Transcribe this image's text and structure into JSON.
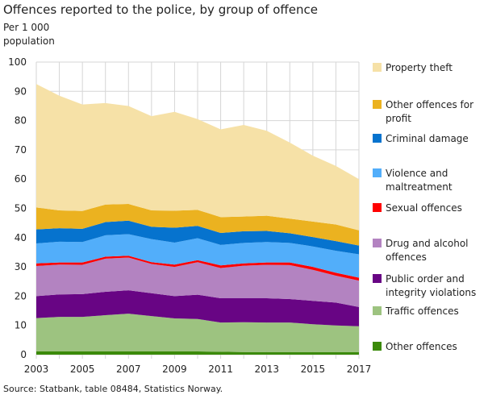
{
  "chart_data": {
    "type": "area",
    "stacked": true,
    "title": "Offences reported to the police, by group of offence",
    "ylabel": "Per 1 000 population",
    "source": "Source: Statbank, table 08484, Statistics Norway.",
    "ylim": [
      0,
      100
    ],
    "yticks": [
      0,
      10,
      20,
      30,
      40,
      50,
      60,
      70,
      80,
      90,
      100
    ],
    "x": [
      2003,
      2004,
      2005,
      2006,
      2007,
      2008,
      2009,
      2010,
      2011,
      2012,
      2013,
      2014,
      2015,
      2016,
      2017
    ],
    "xticks": [
      2003,
      2005,
      2007,
      2009,
      2011,
      2013,
      2015,
      2017
    ],
    "grid": true,
    "legend": "right",
    "series": [
      {
        "name": "Other offences",
        "color": "#3b8a0a",
        "values": [
          1.1,
          1.1,
          1.1,
          1.1,
          1.1,
          1.1,
          1.1,
          1.1,
          1.0,
          0.9,
          0.9,
          0.9,
          0.9,
          0.9,
          0.9
        ]
      },
      {
        "name": "Traffic offences",
        "color": "#9dc380",
        "values": [
          11.4,
          11.8,
          11.8,
          12.4,
          12.9,
          12.1,
          11.3,
          11.1,
          10.0,
          10.2,
          10.1,
          10.1,
          9.5,
          9.1,
          8.8
        ]
      },
      {
        "name": "Public order and integrity violations",
        "color": "#680584",
        "values": [
          7.5,
          7.7,
          7.8,
          8.0,
          8.0,
          7.8,
          7.6,
          8.3,
          8.3,
          8.2,
          8.3,
          8.0,
          8.0,
          7.8,
          6.6
        ]
      },
      {
        "name": "Drug and alcohol offences",
        "color": "#b383c1",
        "values": [
          10.3,
          10.2,
          10.0,
          11.3,
          11.2,
          10.0,
          10.0,
          11.1,
          10.3,
          11.1,
          11.4,
          11.6,
          10.6,
          9.2,
          9.0
        ]
      },
      {
        "name": "Sexual offences",
        "color": "#ff0000",
        "values": [
          0.9,
          0.7,
          0.8,
          0.7,
          0.6,
          0.6,
          0.8,
          0.7,
          0.9,
          0.8,
          0.8,
          0.9,
          1.0,
          1.0,
          1.0
        ]
      },
      {
        "name": "Violence and maltreatment",
        "color": "#52aefa",
        "values": [
          6.8,
          7.1,
          7.0,
          7.3,
          7.4,
          7.9,
          7.5,
          7.5,
          7.0,
          7.0,
          7.0,
          6.7,
          7.0,
          7.5,
          8.0
        ]
      },
      {
        "name": "Criminal damage",
        "color": "#0673ce",
        "values": [
          4.8,
          4.6,
          4.5,
          4.5,
          4.6,
          4.2,
          5.1,
          4.2,
          4.1,
          4.0,
          3.8,
          3.3,
          3.2,
          3.3,
          3.0
        ]
      },
      {
        "name": "Other offences for profit",
        "color": "#ebb220",
        "values": [
          7.5,
          6.1,
          6.1,
          6.0,
          5.7,
          5.6,
          5.8,
          5.5,
          5.4,
          5.0,
          5.2,
          5.0,
          5.3,
          5.7,
          5.2
        ]
      },
      {
        "name": "Property theft",
        "color": "#f6e1a7",
        "values": [
          42.2,
          39.2,
          36.4,
          34.7,
          33.5,
          32.2,
          33.8,
          31.0,
          30.0,
          31.3,
          29.0,
          26.0,
          22.5,
          20.0,
          17.5
        ]
      }
    ]
  }
}
